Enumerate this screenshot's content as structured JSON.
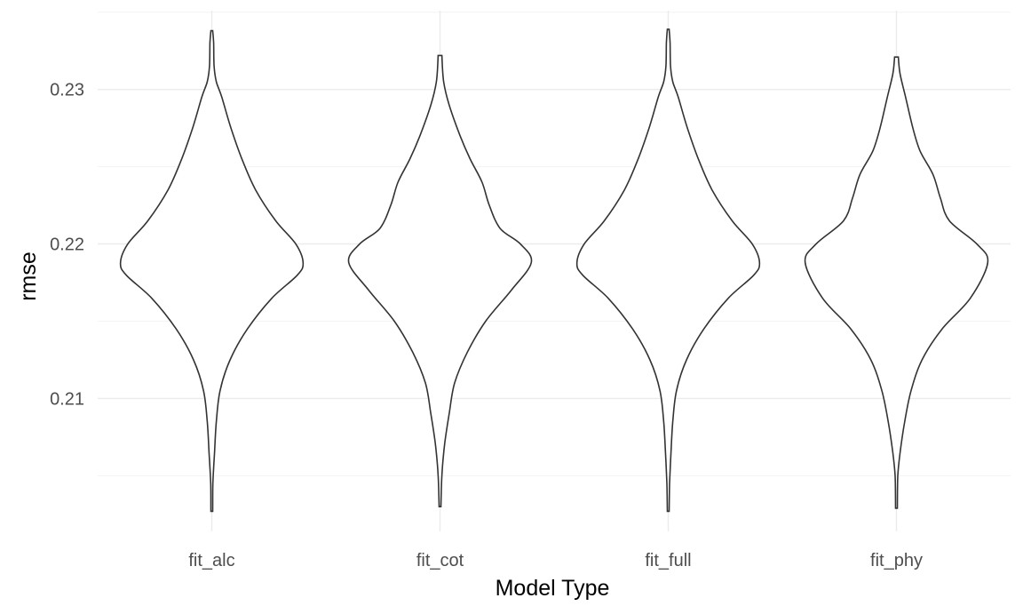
{
  "chart_data": {
    "type": "violin",
    "title": "",
    "xlabel": "Model Type",
    "ylabel": "rmse",
    "categories": [
      "fit_alc",
      "fit_cot",
      "fit_full",
      "fit_phy"
    ],
    "yticks": [
      0.21,
      0.22,
      0.23
    ],
    "ytick_labels": [
      "0.21",
      "0.22",
      "0.23"
    ],
    "ylim": [
      0.2014,
      0.2351
    ],
    "grid": true,
    "legend": "none",
    "series": [
      {
        "category": "fit_alc",
        "y_min": 0.2027,
        "y_max": 0.2338,
        "profile": [
          [
            0.2027,
            0.01
          ],
          [
            0.2045,
            0.012
          ],
          [
            0.2065,
            0.03
          ],
          [
            0.2085,
            0.05
          ],
          [
            0.2105,
            0.09
          ],
          [
            0.2125,
            0.2
          ],
          [
            0.2145,
            0.39
          ],
          [
            0.2165,
            0.66
          ],
          [
            0.218,
            0.94
          ],
          [
            0.2188,
            1.0
          ],
          [
            0.22,
            0.92
          ],
          [
            0.2215,
            0.7
          ],
          [
            0.2235,
            0.48
          ],
          [
            0.2255,
            0.33
          ],
          [
            0.2275,
            0.21
          ],
          [
            0.2295,
            0.11
          ],
          [
            0.2305,
            0.05
          ],
          [
            0.2315,
            0.025
          ],
          [
            0.233,
            0.02
          ],
          [
            0.2338,
            0.01
          ]
        ]
      },
      {
        "category": "fit_cot",
        "y_min": 0.203,
        "y_max": 0.2322,
        "profile": [
          [
            0.203,
            0.01
          ],
          [
            0.205,
            0.02
          ],
          [
            0.207,
            0.05
          ],
          [
            0.209,
            0.1
          ],
          [
            0.211,
            0.16
          ],
          [
            0.213,
            0.3
          ],
          [
            0.215,
            0.5
          ],
          [
            0.217,
            0.78
          ],
          [
            0.2188,
            1.0
          ],
          [
            0.22,
            0.88
          ],
          [
            0.221,
            0.66
          ],
          [
            0.2225,
            0.54
          ],
          [
            0.224,
            0.46
          ],
          [
            0.2255,
            0.33
          ],
          [
            0.227,
            0.22
          ],
          [
            0.229,
            0.1
          ],
          [
            0.2305,
            0.04
          ],
          [
            0.2322,
            0.02
          ]
        ]
      },
      {
        "category": "fit_full",
        "y_min": 0.2027,
        "y_max": 0.2339,
        "profile": [
          [
            0.2027,
            0.01
          ],
          [
            0.2045,
            0.015
          ],
          [
            0.2065,
            0.03
          ],
          [
            0.2085,
            0.05
          ],
          [
            0.2105,
            0.09
          ],
          [
            0.2125,
            0.2
          ],
          [
            0.2145,
            0.39
          ],
          [
            0.2165,
            0.66
          ],
          [
            0.218,
            0.94
          ],
          [
            0.2188,
            1.0
          ],
          [
            0.22,
            0.92
          ],
          [
            0.2215,
            0.7
          ],
          [
            0.2235,
            0.48
          ],
          [
            0.2255,
            0.33
          ],
          [
            0.2275,
            0.21
          ],
          [
            0.2295,
            0.11
          ],
          [
            0.2305,
            0.05
          ],
          [
            0.2315,
            0.025
          ],
          [
            0.233,
            0.02
          ],
          [
            0.2339,
            0.01
          ]
        ]
      },
      {
        "category": "fit_phy",
        "y_min": 0.2029,
        "y_max": 0.2321,
        "profile": [
          [
            0.2029,
            0.01
          ],
          [
            0.205,
            0.015
          ],
          [
            0.2065,
            0.04
          ],
          [
            0.2085,
            0.09
          ],
          [
            0.2105,
            0.16
          ],
          [
            0.2125,
            0.28
          ],
          [
            0.2145,
            0.5
          ],
          [
            0.2165,
            0.81
          ],
          [
            0.2188,
            1.0
          ],
          [
            0.22,
            0.88
          ],
          [
            0.2215,
            0.58
          ],
          [
            0.223,
            0.48
          ],
          [
            0.2245,
            0.4
          ],
          [
            0.226,
            0.26
          ],
          [
            0.2275,
            0.18
          ],
          [
            0.2295,
            0.1
          ],
          [
            0.231,
            0.04
          ],
          [
            0.2321,
            0.02
          ]
        ]
      }
    ]
  }
}
